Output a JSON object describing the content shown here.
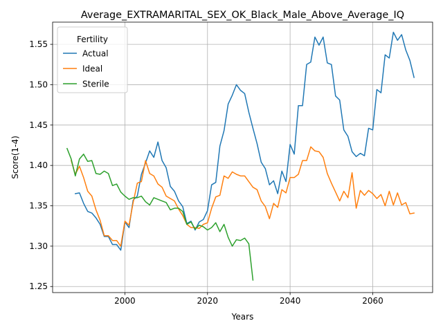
{
  "chart_data": {
    "type": "line",
    "title": "Average_EXTRAMARITAL_SEX_OK_Black_Male_Above_Average_IQ",
    "xlabel": "Years",
    "ylabel": "Score(1-4)",
    "xlim": [
      1982.5,
      2074.5
    ],
    "ylim": [
      1.2425,
      1.5775
    ],
    "xticks": [
      2000,
      2020,
      2040,
      2060
    ],
    "yticks": [
      1.25,
      1.3,
      1.35,
      1.4,
      1.45,
      1.5,
      1.55
    ],
    "ytick_labels": [
      "1.25",
      "1.30",
      "1.35",
      "1.40",
      "1.45",
      "1.50",
      "1.55"
    ],
    "grid": true,
    "legend": {
      "title": "Fertility",
      "placement": "upper-left"
    },
    "series": [
      {
        "name": "Actual",
        "color": "#1f77b4",
        "x": [
          1988,
          1989,
          1990,
          1991,
          1992,
          1993,
          1994,
          1995,
          1996,
          1997,
          1998,
          1999,
          2000,
          2001,
          2002,
          2003,
          2004,
          2005,
          2006,
          2007,
          2008,
          2009,
          2010,
          2011,
          2012,
          2013,
          2014,
          2015,
          2016,
          2017,
          2018,
          2019,
          2020,
          2021,
          2022,
          2023,
          2024,
          2025,
          2026,
          2027,
          2028,
          2029,
          2030,
          2031,
          2032,
          2033,
          2034,
          2035,
          2036,
          2037,
          2038,
          2039,
          2040,
          2041,
          2042,
          2043,
          2044,
          2045,
          2046,
          2047,
          2048,
          2049,
          2050,
          2051,
          2052,
          2053,
          2054,
          2055,
          2056,
          2057,
          2058,
          2059,
          2060,
          2061,
          2062,
          2063,
          2064,
          2065,
          2066,
          2067,
          2068,
          2069,
          2070
        ],
        "values": [
          1.365,
          1.366,
          1.353,
          1.343,
          1.341,
          1.335,
          1.327,
          1.312,
          1.312,
          1.302,
          1.302,
          1.295,
          1.33,
          1.323,
          1.357,
          1.362,
          1.389,
          1.403,
          1.418,
          1.41,
          1.429,
          1.406,
          1.397,
          1.374,
          1.368,
          1.356,
          1.349,
          1.328,
          1.331,
          1.32,
          1.33,
          1.333,
          1.344,
          1.376,
          1.379,
          1.424,
          1.443,
          1.476,
          1.487,
          1.5,
          1.493,
          1.489,
          1.466,
          1.446,
          1.427,
          1.404,
          1.396,
          1.376,
          1.381,
          1.365,
          1.393,
          1.38,
          1.426,
          1.414,
          1.474,
          1.474,
          1.525,
          1.528,
          1.559,
          1.549,
          1.559,
          1.527,
          1.525,
          1.486,
          1.481,
          1.444,
          1.436,
          1.417,
          1.411,
          1.415,
          1.412,
          1.446,
          1.444,
          1.494,
          1.49,
          1.537,
          1.533,
          1.565,
          1.555,
          1.562,
          1.543,
          1.53,
          1.509
        ]
      },
      {
        "name": "Ideal",
        "color": "#ff7f0e",
        "x": [
          1987,
          1988,
          1989,
          1990,
          1991,
          1992,
          1993,
          1994,
          1995,
          1996,
          1997,
          1998,
          1999,
          2000,
          2001,
          2002,
          2003,
          2004,
          2005,
          2006,
          2007,
          2008,
          2009,
          2010,
          2011,
          2012,
          2013,
          2014,
          2015,
          2016,
          2017,
          2018,
          2019,
          2020,
          2021,
          2022,
          2023,
          2024,
          2025,
          2026,
          2027,
          2028,
          2029,
          2030,
          2031,
          2032,
          2033,
          2034,
          2035,
          2036,
          2037,
          2038,
          2039,
          2040,
          2041,
          2042,
          2043,
          2044,
          2045,
          2046,
          2047,
          2048,
          2049,
          2050,
          2051,
          2052,
          2053,
          2054,
          2055,
          2056,
          2057,
          2058,
          2059,
          2060,
          2061,
          2062,
          2063,
          2064,
          2065,
          2066,
          2067,
          2068,
          2069,
          2070
        ],
        "values": [
          1.406,
          1.389,
          1.399,
          1.385,
          1.368,
          1.362,
          1.345,
          1.332,
          1.313,
          1.313,
          1.307,
          1.307,
          1.3,
          1.331,
          1.326,
          1.354,
          1.378,
          1.38,
          1.406,
          1.39,
          1.387,
          1.377,
          1.373,
          1.362,
          1.359,
          1.356,
          1.346,
          1.338,
          1.327,
          1.323,
          1.323,
          1.322,
          1.327,
          1.329,
          1.347,
          1.361,
          1.363,
          1.387,
          1.384,
          1.392,
          1.389,
          1.387,
          1.387,
          1.38,
          1.373,
          1.37,
          1.356,
          1.349,
          1.334,
          1.353,
          1.348,
          1.37,
          1.366,
          1.385,
          1.385,
          1.389,
          1.406,
          1.406,
          1.423,
          1.418,
          1.417,
          1.41,
          1.39,
          1.378,
          1.367,
          1.356,
          1.368,
          1.36,
          1.391,
          1.347,
          1.369,
          1.363,
          1.369,
          1.365,
          1.359,
          1.364,
          1.35,
          1.368,
          1.351,
          1.366,
          1.351,
          1.354,
          1.34,
          1.341
        ]
      },
      {
        "name": "Sterile",
        "color": "#2ca02c",
        "x": [
          1986,
          1987,
          1988,
          1989,
          1990,
          1991,
          1992,
          1993,
          1994,
          1995,
          1996,
          1997,
          1998,
          1999,
          2000,
          2001,
          2002,
          2003,
          2004,
          2005,
          2006,
          2007,
          2008,
          2009,
          2010,
          2011,
          2012,
          2013,
          2014,
          2015,
          2016,
          2017,
          2018,
          2019,
          2020,
          2021,
          2022,
          2023,
          2024,
          2025,
          2026,
          2027,
          2028,
          2029,
          2030,
          2031
        ],
        "values": [
          1.421,
          1.408,
          1.387,
          1.408,
          1.414,
          1.405,
          1.406,
          1.39,
          1.389,
          1.393,
          1.39,
          1.375,
          1.377,
          1.367,
          1.362,
          1.358,
          1.36,
          1.36,
          1.362,
          1.355,
          1.351,
          1.36,
          1.358,
          1.356,
          1.354,
          1.345,
          1.347,
          1.347,
          1.343,
          1.327,
          1.33,
          1.321,
          1.326,
          1.324,
          1.32,
          1.323,
          1.329,
          1.318,
          1.327,
          1.311,
          1.3,
          1.308,
          1.307,
          1.31,
          1.303,
          1.258
        ]
      }
    ]
  }
}
